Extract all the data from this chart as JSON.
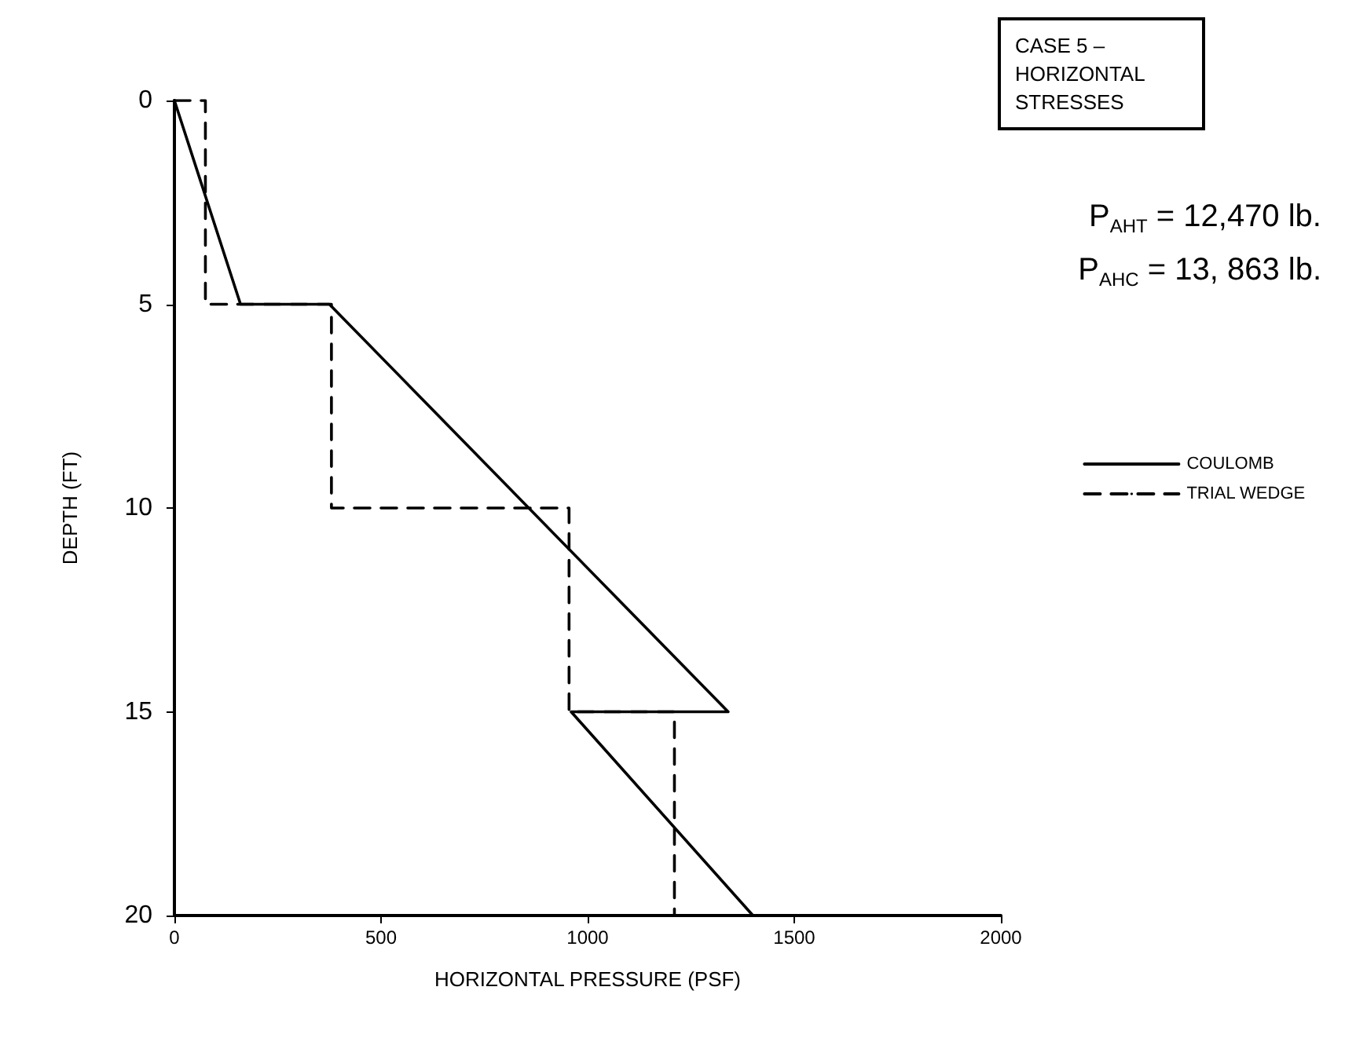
{
  "chart_data": {
    "type": "line",
    "title": "CASE 5 – HORIZONTAL STRESSES",
    "xlabel": "HORIZONTAL PRESSURE (PSF)",
    "ylabel": "DEPTH (FT)",
    "annotations": [
      "P$_{AHT}$ = 12,470 lb.",
      "P$_{AHC}$ = 13, 863 lb."
    ],
    "series": [
      {
        "name": "COULOMB",
        "color": "#000000",
        "line_style": "solid",
        "x": [
          0,
          160,
          375,
          1340,
          960,
          1400
        ],
        "values": [
          0,
          5,
          5,
          15,
          15,
          20
        ]
      },
      {
        "name": "TRIAL WEDGE",
        "color": "#000000",
        "line_style": "dashed",
        "x": [
          0,
          75,
          75,
          380,
          380,
          955,
          955,
          1210,
          1210
        ],
        "values": [
          0,
          0,
          5,
          5,
          10,
          10,
          15,
          15,
          20
        ]
      }
    ],
    "xlim": [
      0,
      2000
    ],
    "xticks": [
      0,
      500,
      1000,
      1500,
      2000
    ],
    "ylim": [
      20,
      0
    ],
    "yticks": [
      0,
      5,
      10,
      15,
      20
    ],
    "legend": "right",
    "marker": "none",
    "grid": false
  }
}
